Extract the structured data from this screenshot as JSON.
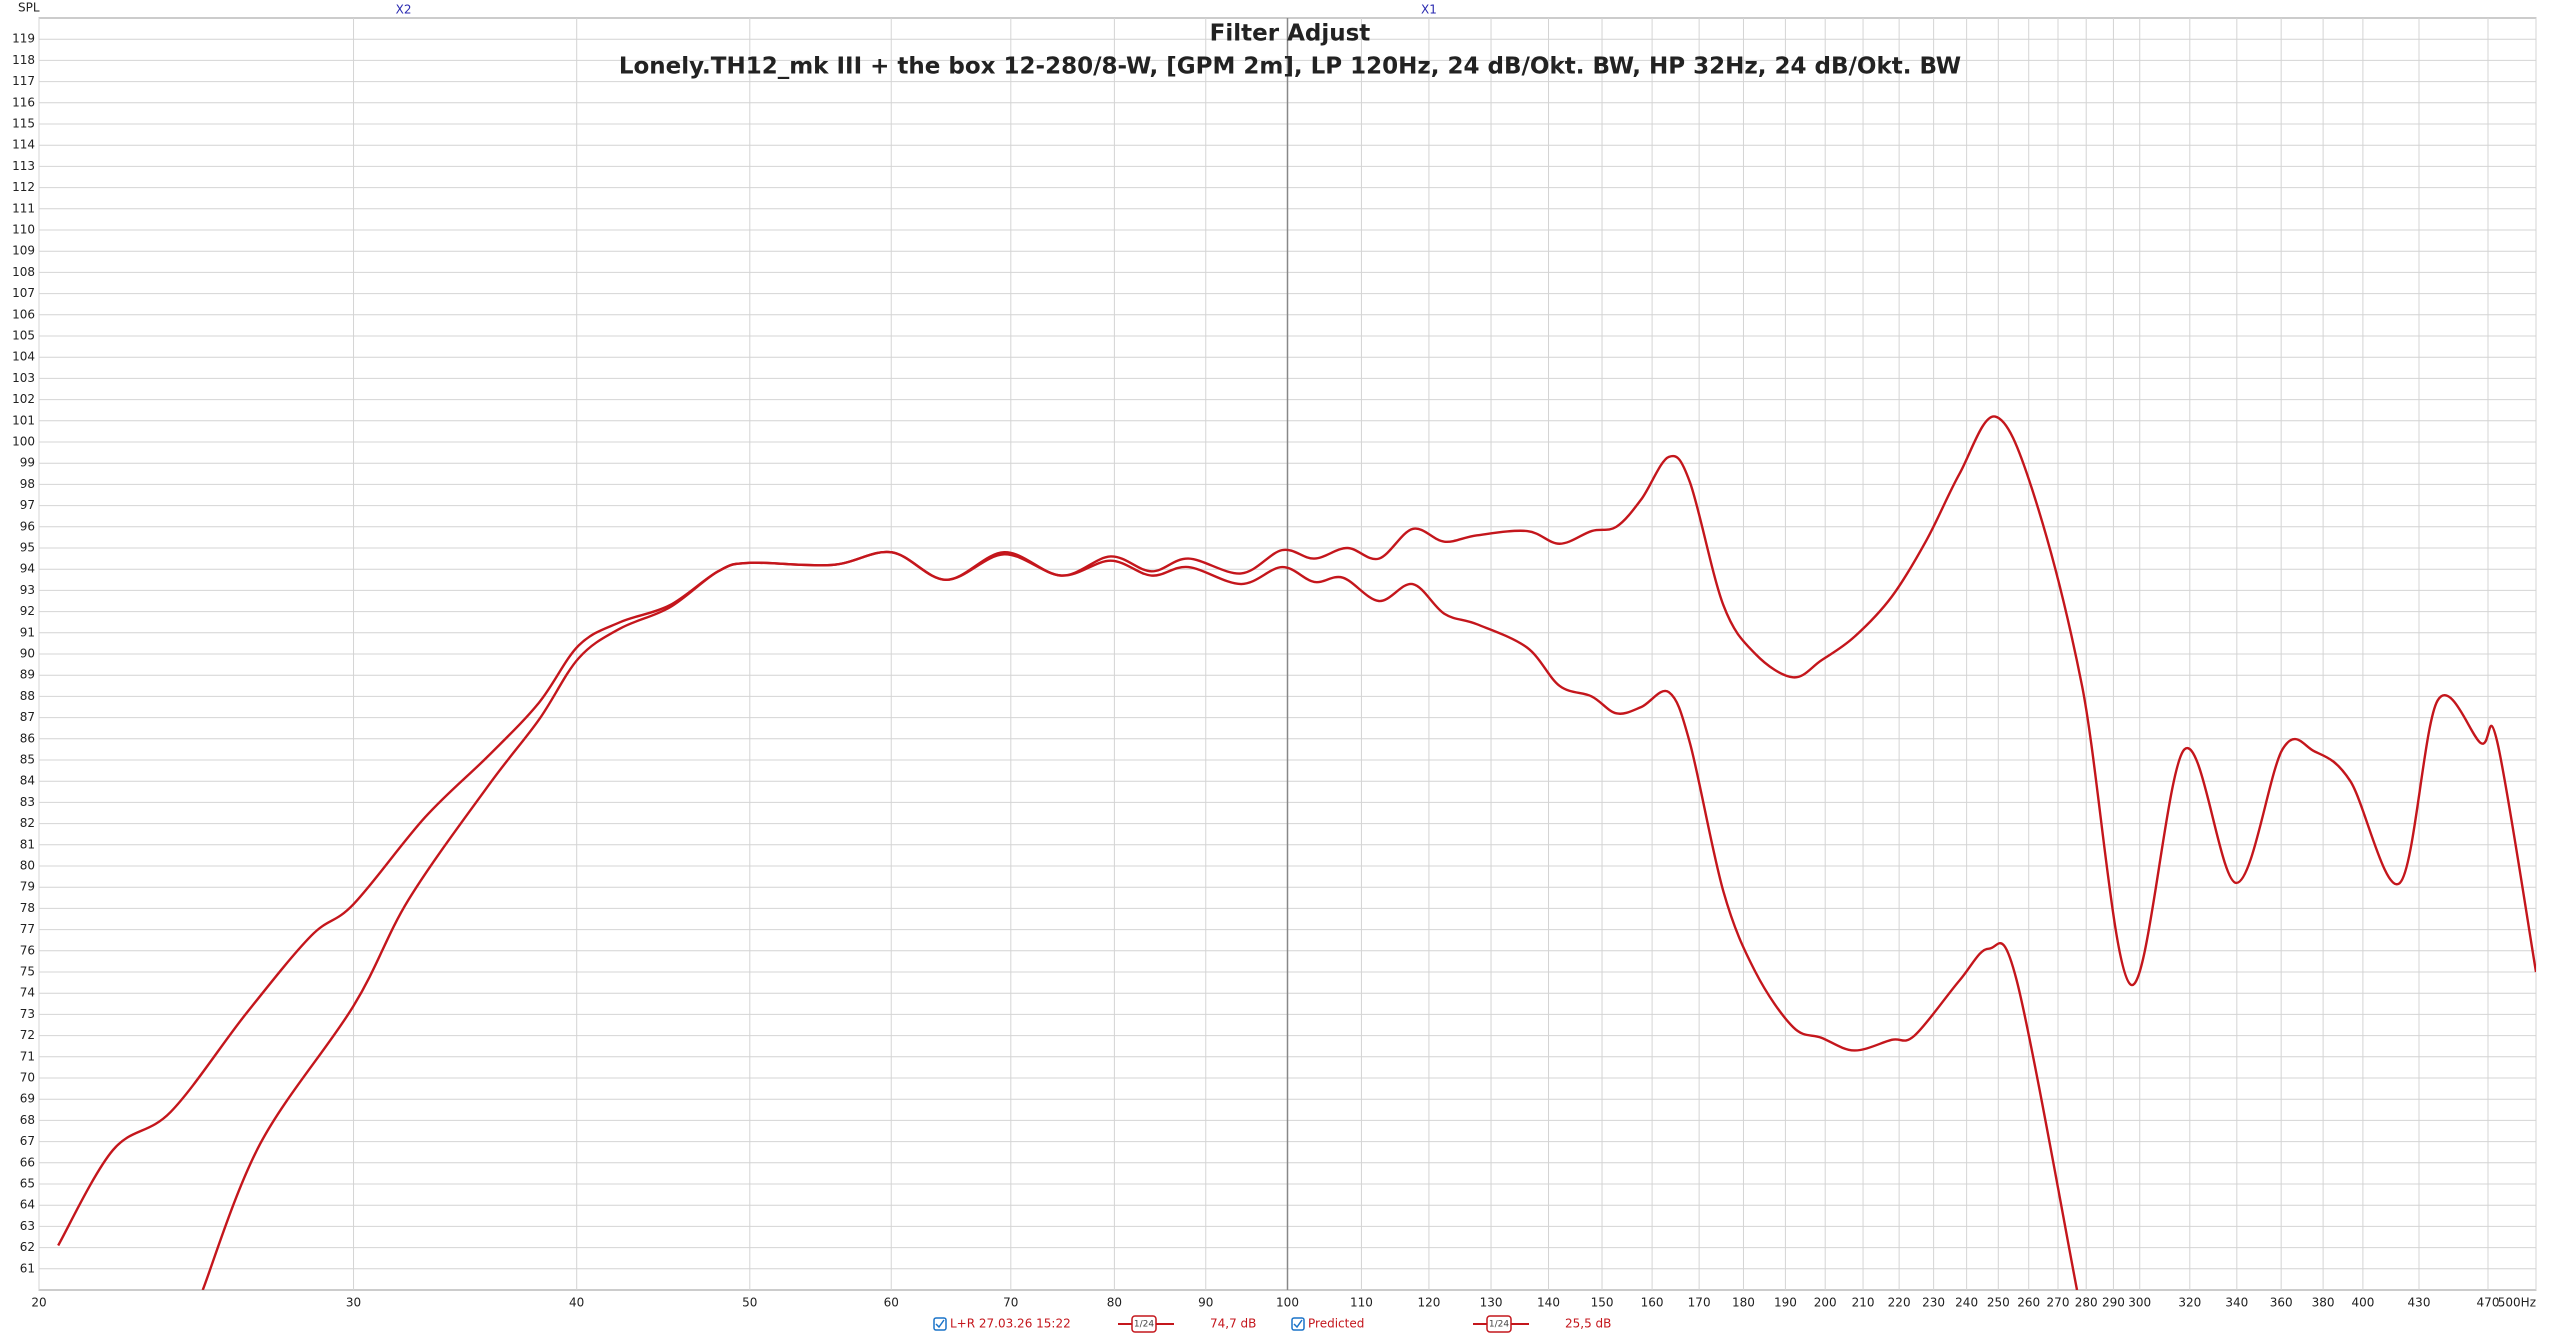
{
  "chart_data": {
    "type": "line",
    "title": "Filter Adjust",
    "subtitle": "Lonely.TH12_mk III + the box 12-280/8-W, [GPM 2m], LP 120Hz, 24 dB/Okt. BW, HP 32Hz, 24 dB/Okt. BW",
    "y_label": "SPL",
    "xscale": "log",
    "grid": true,
    "xlim": [
      20,
      500
    ],
    "ylim": [
      60,
      120
    ],
    "xticks": [
      20,
      30,
      40,
      50,
      60,
      70,
      80,
      90,
      100,
      110,
      120,
      130,
      140,
      150,
      160,
      170,
      180,
      190,
      200,
      210,
      220,
      230,
      240,
      250,
      260,
      270,
      280,
      290,
      300,
      320,
      340,
      360,
      380,
      400,
      430,
      470,
      {
        "value": 500,
        "label": "500Hz"
      }
    ],
    "yticks": [
      61,
      62,
      63,
      64,
      65,
      66,
      67,
      68,
      69,
      70,
      71,
      72,
      73,
      74,
      75,
      76,
      77,
      78,
      79,
      80,
      81,
      82,
      83,
      84,
      85,
      86,
      87,
      88,
      89,
      90,
      91,
      92,
      93,
      94,
      95,
      96,
      97,
      98,
      99,
      100,
      101,
      102,
      103,
      104,
      105,
      106,
      107,
      108,
      109,
      110,
      111,
      112,
      113,
      114,
      115,
      116,
      117,
      118,
      119
    ],
    "markers": [
      {
        "label": "X2",
        "x": 32
      },
      {
        "label": "X1",
        "x": 120
      }
    ],
    "series": [
      {
        "name": "L+R 27.03.26 15:22",
        "color": "#c4161c",
        "smoothing": "1/24",
        "level": "74,7 dB",
        "x": [
          20.5,
          22.0,
          23.7,
          26.1,
          28.4,
          30,
          32.9,
          35.7,
          38.1,
          40.1,
          42.3,
          45.1,
          48,
          50,
          55.6,
          60,
          64.4,
          69.4,
          74.7,
          79.6,
          83.9,
          88,
          94.2,
          99.3,
          103.5,
          108,
          112.5,
          117.5,
          122.4,
          127.7,
          136.2,
          142,
          148,
          152.8,
          157.8,
          163.5,
          168,
          175.4,
          182.8,
          191.9,
          199,
          207.6,
          217.9,
          228,
          237.8,
          249,
          261.3,
          278.5,
          296.6,
          317.8,
          339.8,
          360.6,
          375.9,
          393.6,
          419.5,
          440.4,
          465.6,
          475.5,
          500
        ],
        "values": [
          62.1,
          66.6,
          68.4,
          73.0,
          76.7,
          78.2,
          82.3,
          85.2,
          87.7,
          90.4,
          91.5,
          92.3,
          93.9,
          94.3,
          94.2,
          94.8,
          93.5,
          94.8,
          93.7,
          94.6,
          93.9,
          94.5,
          93.8,
          94.9,
          94.5,
          95.0,
          94.5,
          95.9,
          95.3,
          95.6,
          95.8,
          95.2,
          95.8,
          96.0,
          97.3,
          99.3,
          98.1,
          92.3,
          90.0,
          88.9,
          89.7,
          90.8,
          92.7,
          95.4,
          98.5,
          101.2,
          97.7,
          88.5,
          74.4,
          85.5,
          79.2,
          85.5,
          85.4,
          84.0,
          79.2,
          87.8,
          85.8,
          85.9,
          75.0
        ]
      },
      {
        "name": "Predicted",
        "color": "#c4161c",
        "smoothing": "1/24",
        "level": "25,5 dB",
        "x": [
          24.7,
          26.6,
          30,
          32.2,
          35.7,
          38.1,
          40.1,
          42.3,
          45.1,
          48,
          50,
          55.6,
          60,
          64.4,
          69.4,
          74.7,
          79.6,
          83.9,
          88,
          94.2,
          99.3,
          103.5,
          107.4,
          112.5,
          117.5,
          122.4,
          127.7,
          136.2,
          142,
          148,
          152.8,
          157.8,
          163.5,
          168,
          175.4,
          182.8,
          191.9,
          199,
          207.6,
          217.9,
          224.4,
          237.8,
          247,
          256,
          276.7
        ],
        "values": [
          60.0,
          66.9,
          73.4,
          78.4,
          83.8,
          86.9,
          89.8,
          91.2,
          92.2,
          93.9,
          94.3,
          94.2,
          94.8,
          93.5,
          94.7,
          93.7,
          94.4,
          93.7,
          94.1,
          93.3,
          94.1,
          93.4,
          93.6,
          92.5,
          93.3,
          91.9,
          91.4,
          90.3,
          88.5,
          88.0,
          87.2,
          87.5,
          88.2,
          85.8,
          78.8,
          75.0,
          72.4,
          71.9,
          71.3,
          71.8,
          72.0,
          74.6,
          76.1,
          74.6,
          60.0
        ]
      }
    ]
  }
}
